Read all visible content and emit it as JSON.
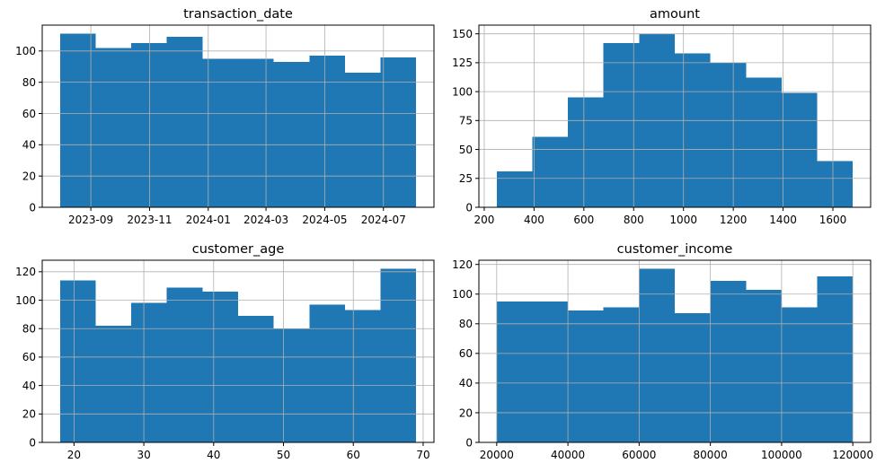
{
  "chart_data": [
    {
      "type": "bar",
      "title": "transaction_date",
      "x_axis": "date",
      "bin_edges": [
        "2023-07-31",
        "2023-09-06",
        "2023-10-13",
        "2023-11-19",
        "2023-12-26",
        "2024-02-01",
        "2024-03-09",
        "2024-04-15",
        "2024-05-22",
        "2024-06-28",
        "2024-08-04"
      ],
      "values": [
        111,
        102,
        105,
        109,
        95,
        95,
        93,
        97,
        86,
        96
      ],
      "xticks": [
        "2023-09-01",
        "2023-11-01",
        "2024-01-01",
        "2024-03-01",
        "2024-05-01",
        "2024-07-01"
      ],
      "xtick_labels": [
        "2023-09",
        "2023-11",
        "2024-01",
        "2024-03",
        "2024-05",
        "2024-07"
      ],
      "yticks": [
        0,
        20,
        40,
        60,
        80,
        100
      ],
      "ylim": [
        0,
        116.55
      ],
      "grid": true,
      "color": "#1f77b4"
    },
    {
      "type": "bar",
      "title": "amount",
      "bin_edges": [
        250,
        393,
        536,
        679,
        822,
        965,
        1108,
        1251,
        1394,
        1537,
        1680
      ],
      "values": [
        31,
        61,
        95,
        142,
        150,
        133,
        125,
        112,
        99,
        40
      ],
      "xticks": [
        200,
        400,
        600,
        800,
        1000,
        1200,
        1400,
        1600
      ],
      "yticks": [
        0,
        25,
        50,
        75,
        100,
        125,
        150
      ],
      "xlim": [
        178.5,
        1751.5
      ],
      "ylim": [
        0,
        157.5
      ],
      "grid": true,
      "color": "#1f77b4"
    },
    {
      "type": "bar",
      "title": "customer_age",
      "bin_edges": [
        18,
        23.1,
        28.2,
        33.3,
        38.4,
        43.5,
        48.6,
        53.7,
        58.8,
        63.9,
        69
      ],
      "values": [
        114,
        82,
        98,
        109,
        106,
        89,
        80,
        97,
        93,
        122
      ],
      "xticks": [
        20,
        30,
        40,
        50,
        60,
        70
      ],
      "yticks": [
        0,
        20,
        40,
        60,
        80,
        100,
        120
      ],
      "xlim": [
        15.45,
        71.55
      ],
      "ylim": [
        0,
        128.1
      ],
      "grid": true,
      "color": "#1f77b4"
    },
    {
      "type": "bar",
      "title": "customer_income",
      "bin_edges": [
        20000,
        30000,
        40000,
        50000,
        60000,
        70000,
        80000,
        90000,
        100000,
        110000,
        120000
      ],
      "values": [
        95,
        95,
        89,
        91,
        117,
        87,
        109,
        103,
        91,
        112
      ],
      "xticks": [
        20000,
        40000,
        60000,
        80000,
        100000,
        120000
      ],
      "yticks": [
        0,
        20,
        40,
        60,
        80,
        100,
        120
      ],
      "xlim": [
        15000,
        125000
      ],
      "ylim": [
        0,
        122.85
      ],
      "grid": true,
      "color": "#1f77b4"
    }
  ]
}
